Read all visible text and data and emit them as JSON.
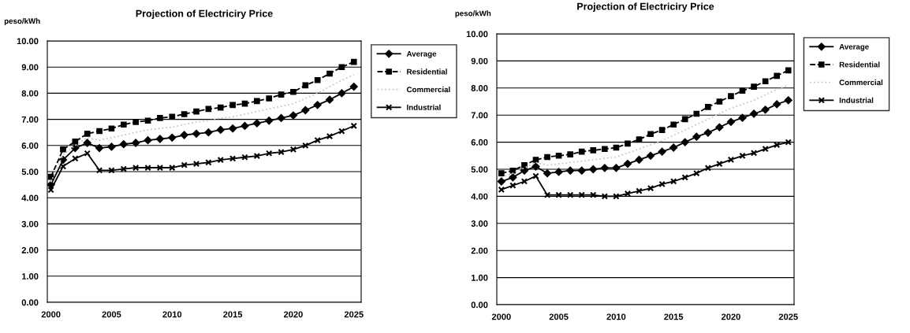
{
  "chart_data": [
    {
      "type": "line",
      "title": "Projection of Electriciry Price",
      "ylabel": "peso/kWh",
      "x": [
        2000,
        2001,
        2002,
        2003,
        2004,
        2005,
        2006,
        2007,
        2008,
        2009,
        2010,
        2011,
        2012,
        2013,
        2014,
        2015,
        2016,
        2017,
        2018,
        2019,
        2020,
        2021,
        2022,
        2023,
        2024,
        2025
      ],
      "series": [
        {
          "name": "Average",
          "color": "#000000",
          "marker": "diamond",
          "line_style": "solid",
          "values": [
            4.5,
            5.45,
            5.9,
            6.1,
            5.9,
            5.95,
            6.05,
            6.1,
            6.2,
            6.25,
            6.3,
            6.4,
            6.45,
            6.5,
            6.6,
            6.65,
            6.75,
            6.85,
            6.95,
            7.05,
            7.15,
            7.35,
            7.55,
            7.75,
            8.0,
            8.25
          ]
        },
        {
          "name": "Residential",
          "color": "#000000",
          "marker": "square",
          "line_style": "dashed",
          "values": [
            4.8,
            5.85,
            6.15,
            6.45,
            6.55,
            6.65,
            6.8,
            6.9,
            6.95,
            7.05,
            7.1,
            7.2,
            7.3,
            7.4,
            7.45,
            7.55,
            7.6,
            7.7,
            7.8,
            7.95,
            8.05,
            8.3,
            8.5,
            8.75,
            9.0,
            9.2
          ]
        },
        {
          "name": "Commercial",
          "color": "#c8c8c8",
          "marker": "none",
          "line_style": "dotted",
          "values": [
            4.6,
            5.65,
            6.0,
            6.3,
            6.2,
            6.3,
            6.4,
            6.5,
            6.6,
            6.65,
            6.7,
            6.8,
            6.9,
            6.95,
            7.05,
            7.1,
            7.2,
            7.3,
            7.4,
            7.5,
            7.6,
            7.8,
            8.0,
            8.25,
            8.5,
            8.7
          ]
        },
        {
          "name": "Industrial",
          "color": "#000000",
          "marker": "cross",
          "line_style": "solid",
          "values": [
            4.3,
            5.2,
            5.5,
            5.7,
            5.05,
            5.05,
            5.1,
            5.15,
            5.15,
            5.15,
            5.15,
            5.25,
            5.3,
            5.35,
            5.45,
            5.5,
            5.55,
            5.6,
            5.7,
            5.75,
            5.85,
            6.0,
            6.2,
            6.35,
            6.55,
            6.75
          ]
        }
      ],
      "xlim": [
        1999.7,
        2025.6
      ],
      "xticks": [
        2000,
        2005,
        2010,
        2015,
        2020,
        2025
      ],
      "ylim": [
        0,
        10
      ],
      "yticks": [
        {
          "value": 0,
          "label": "0.00"
        },
        {
          "value": 1,
          "label": "1.00"
        },
        {
          "value": 2,
          "label": "2.00"
        },
        {
          "value": 3,
          "label": "3.00"
        },
        {
          "value": 4,
          "label": "4.00"
        },
        {
          "value": 5,
          "label": "5.00"
        },
        {
          "value": 6,
          "label": "6.00"
        },
        {
          "value": 7,
          "label": "7.00"
        },
        {
          "value": 8,
          "label": "8.00"
        },
        {
          "value": 9,
          "label": "9.00"
        },
        {
          "value": 10,
          "label": "10.00"
        }
      ],
      "grid": "y",
      "legend": "top right"
    },
    {
      "type": "line",
      "title": "Projection of Electriciry Price",
      "ylabel": "peso/kWh",
      "x": [
        2000,
        2001,
        2002,
        2003,
        2004,
        2005,
        2006,
        2007,
        2008,
        2009,
        2010,
        2011,
        2012,
        2013,
        2014,
        2015,
        2016,
        2017,
        2018,
        2019,
        2020,
        2021,
        2022,
        2023,
        2024,
        2025
      ],
      "series": [
        {
          "name": "Average",
          "color": "#000000",
          "marker": "diamond",
          "line_style": "solid",
          "values": [
            4.55,
            4.7,
            4.95,
            5.1,
            4.85,
            4.9,
            4.95,
            4.95,
            5.0,
            5.05,
            5.05,
            5.2,
            5.35,
            5.5,
            5.65,
            5.8,
            6.0,
            6.2,
            6.35,
            6.55,
            6.75,
            6.9,
            7.05,
            7.2,
            7.4,
            7.55
          ]
        },
        {
          "name": "Residential",
          "color": "#000000",
          "marker": "square",
          "line_style": "dashed",
          "values": [
            4.85,
            4.95,
            5.15,
            5.35,
            5.45,
            5.5,
            5.55,
            5.65,
            5.7,
            5.75,
            5.8,
            5.95,
            6.1,
            6.3,
            6.45,
            6.65,
            6.85,
            7.05,
            7.3,
            7.5,
            7.7,
            7.9,
            8.05,
            8.25,
            8.45,
            8.65
          ]
        },
        {
          "name": "Commercial",
          "color": "#c8c8c8",
          "marker": "none",
          "line_style": "dotted",
          "values": [
            4.7,
            4.85,
            5.05,
            5.25,
            5.15,
            5.2,
            5.25,
            5.3,
            5.35,
            5.4,
            5.45,
            5.6,
            5.75,
            5.9,
            6.05,
            6.25,
            6.45,
            6.65,
            6.85,
            7.05,
            7.25,
            7.4,
            7.55,
            7.75,
            7.95,
            8.1
          ]
        },
        {
          "name": "Industrial",
          "color": "#000000",
          "marker": "cross",
          "line_style": "solid",
          "values": [
            4.25,
            4.4,
            4.55,
            4.75,
            4.05,
            4.05,
            4.05,
            4.05,
            4.05,
            4.0,
            4.0,
            4.1,
            4.2,
            4.3,
            4.45,
            4.55,
            4.7,
            4.85,
            5.05,
            5.2,
            5.35,
            5.5,
            5.6,
            5.75,
            5.9,
            6.0
          ]
        }
      ],
      "xlim": [
        1999.6,
        2025.5
      ],
      "xticks": [
        2000,
        2005,
        2010,
        2015,
        2020,
        2025
      ],
      "ylim": [
        0,
        10
      ],
      "yticks": [
        {
          "value": 0,
          "label": "0.00"
        },
        {
          "value": 1,
          "label": "1.00"
        },
        {
          "value": 2,
          "label": "2.00"
        },
        {
          "value": 3,
          "label": "3.00"
        },
        {
          "value": 4,
          "label": "4.00"
        },
        {
          "value": 5,
          "label": "5.00"
        },
        {
          "value": 6,
          "label": "6.00"
        },
        {
          "value": 7,
          "label": "7.00"
        },
        {
          "value": 8,
          "label": "8.00"
        },
        {
          "value": 9,
          "label": "9.00"
        },
        {
          "value": 10,
          "label": "10.00"
        }
      ],
      "grid": "y",
      "legend": "top right"
    }
  ]
}
